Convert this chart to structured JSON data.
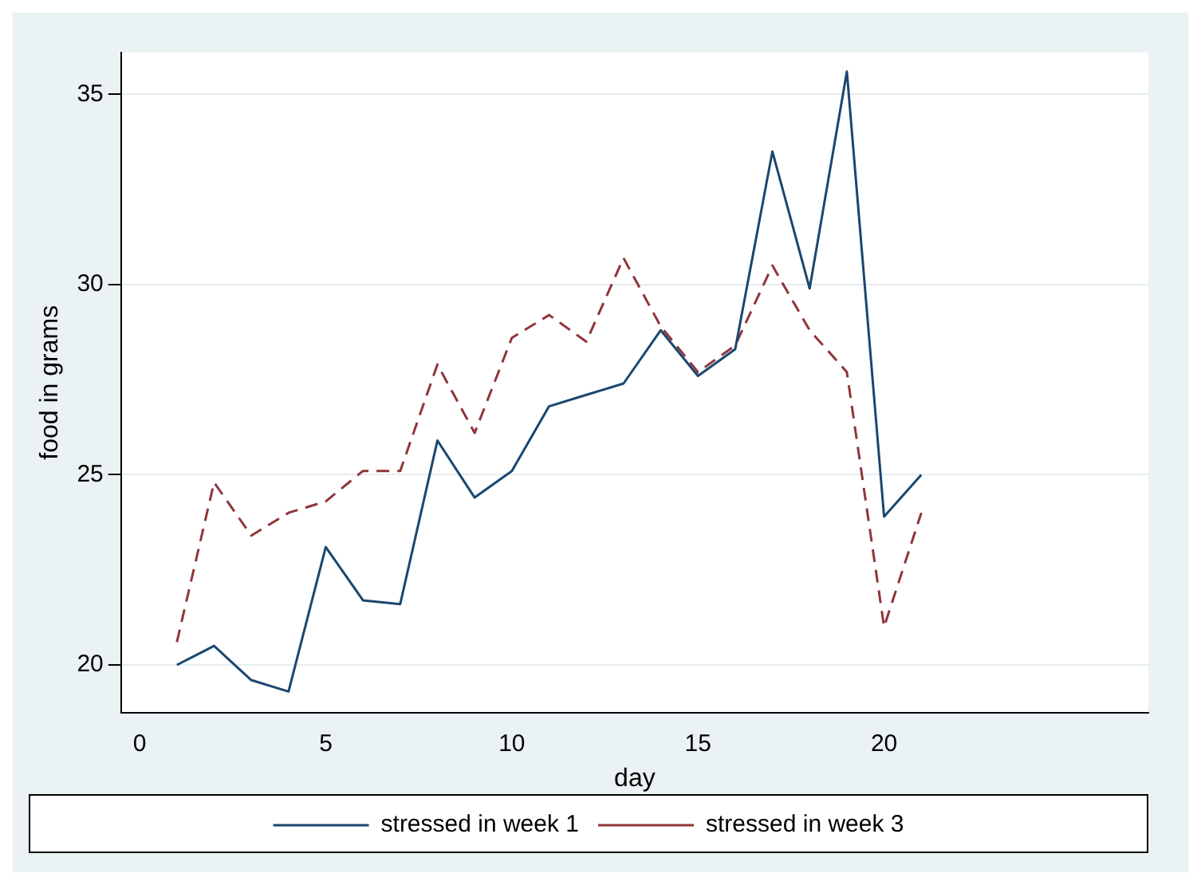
{
  "chart_data": {
    "type": "line",
    "xlabel": "day",
    "ylabel": "food in grams",
    "x": [
      1,
      2,
      3,
      4,
      5,
      6,
      7,
      8,
      9,
      10,
      11,
      12,
      13,
      14,
      15,
      16,
      17,
      18,
      19,
      20,
      21
    ],
    "series": [
      {
        "name": "stressed in week 1",
        "color": "#1a476f",
        "line_style": "solid",
        "values": [
          20.0,
          20.5,
          19.6,
          19.3,
          23.1,
          21.7,
          21.6,
          25.9,
          24.4,
          25.1,
          26.8,
          27.1,
          27.4,
          28.8,
          27.6,
          28.3,
          33.5,
          29.9,
          35.6,
          23.9,
          25.0
        ]
      },
      {
        "name": "stressed in week 3",
        "color": "#90353b",
        "line_style": "dashed",
        "values": [
          20.6,
          24.8,
          23.4,
          24.0,
          24.3,
          25.1,
          25.1,
          27.9,
          26.1,
          28.6,
          29.2,
          28.5,
          30.7,
          28.9,
          27.7,
          28.4,
          30.5,
          28.8,
          27.7,
          21.0,
          24.0
        ]
      }
    ],
    "xlim": [
      -0.5,
      27.1
    ],
    "xticks": [
      0,
      5,
      10,
      15,
      20
    ],
    "ylim": [
      18.75,
      36.1
    ],
    "yticks": [
      20,
      25,
      30,
      35
    ],
    "grid": "y",
    "legend": "bottom",
    "marker": "none"
  }
}
